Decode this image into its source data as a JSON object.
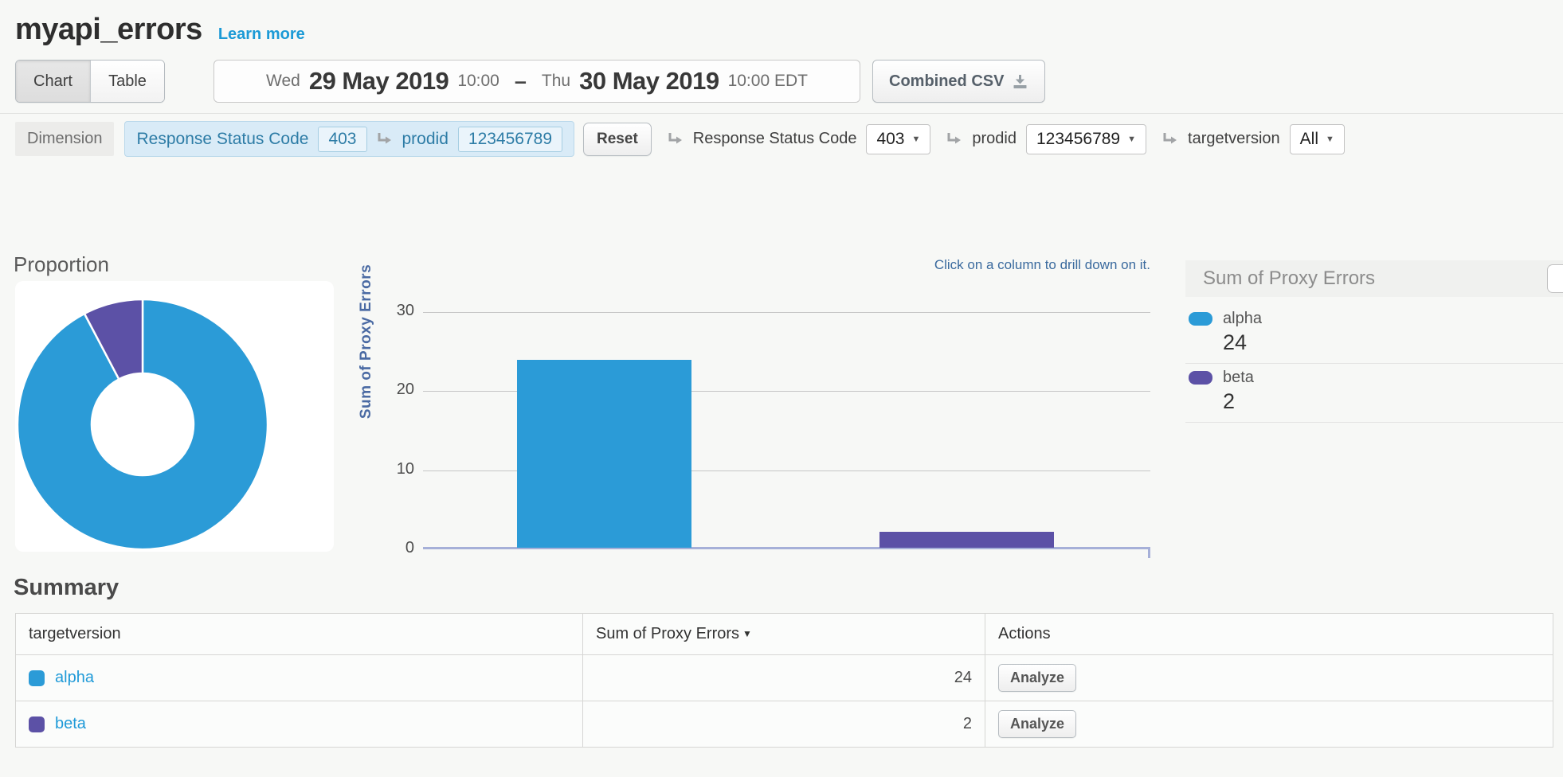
{
  "header": {
    "title": "myapi_errors",
    "learn_more_link": "Learn more"
  },
  "toolbar": {
    "view_toggle": [
      {
        "label": "Chart",
        "active": true
      },
      {
        "label": "Table",
        "active": false
      }
    ],
    "date_range": {
      "start_day": "Wed",
      "start_date": "29 May 2019",
      "start_time": "10:00",
      "separator": "–",
      "end_day": "Thu",
      "end_date": "30 May 2019",
      "end_time": "10:00 EDT"
    },
    "export_label": "Combined CSV"
  },
  "dimension_bar": {
    "label": "Dimension",
    "active_filters": [
      {
        "name": "Response Status Code",
        "value": "403"
      },
      {
        "name": "prodid",
        "value": "123456789"
      }
    ],
    "reset_label": "Reset",
    "selectors": [
      {
        "name": "Response Status Code",
        "value": "403"
      },
      {
        "name": "prodid",
        "value": "123456789"
      },
      {
        "name": "targetversion",
        "value": "All"
      }
    ]
  },
  "proportion_title": "Proportion",
  "drill_hint": "Click on a column to drill down on it.",
  "legend": {
    "title": "Sum of Proxy Errors",
    "items": [
      {
        "label": "alpha",
        "value": "24",
        "color": "#2b9bd7"
      },
      {
        "label": "beta",
        "value": "2",
        "color": "#5c51a6"
      }
    ]
  },
  "chart_data": [
    {
      "type": "pie",
      "title": "Proportion",
      "donut": true,
      "labels": [
        "alpha",
        "beta"
      ],
      "values": [
        24,
        2
      ],
      "colors": [
        "#2b9bd7",
        "#5c51a6"
      ],
      "start_angle_deg": 0,
      "direction": "clockwise"
    },
    {
      "type": "bar",
      "categories": [
        "alpha",
        "beta"
      ],
      "values": [
        24,
        2
      ],
      "colors": [
        "#2b9bd7",
        "#5c51a6"
      ],
      "ylabel": "Sum of Proxy Errors",
      "yticks": [
        "30",
        "20",
        "10",
        "0"
      ],
      "ylim": [
        0,
        30
      ],
      "grid": true,
      "annotation": "Click on a column to drill down on it.",
      "legend_position": "right"
    }
  ],
  "summary": {
    "title": "Summary",
    "table": {
      "columns": [
        "targetversion",
        "Sum of Proxy Errors",
        "Actions"
      ],
      "sorted_column": "Sum of Proxy Errors",
      "rows": [
        {
          "targetversion": "alpha",
          "sum_of_proxy_errors": "24",
          "action_label": "Analyze",
          "color": "#2b9bd7"
        },
        {
          "targetversion": "beta",
          "sum_of_proxy_errors": "2",
          "action_label": "Analyze",
          "color": "#5c51a6"
        }
      ]
    }
  }
}
